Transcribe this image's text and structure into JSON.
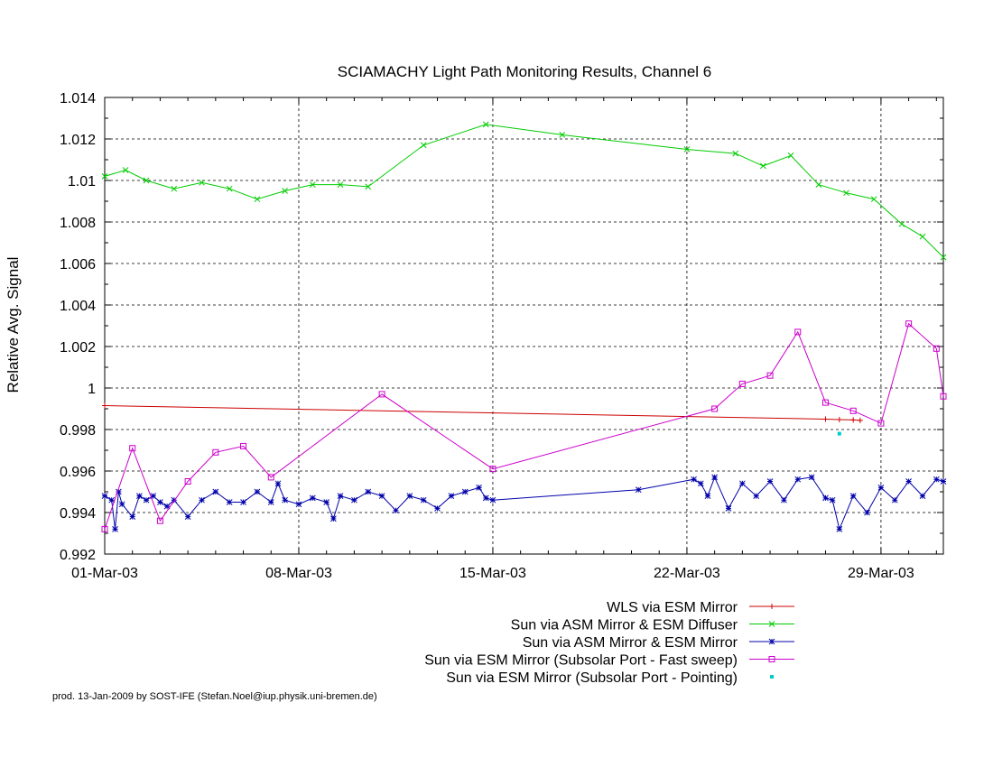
{
  "chart_data": {
    "type": "line",
    "title": "SCIAMACHY Light Path Monitoring Results, Channel 6",
    "xlabel": "",
    "ylabel": "Relative Avg. Signal",
    "x_unit": "date (March 2003)",
    "xlim": [
      "2003-03-01",
      "2003-03-31T06:00"
    ],
    "ylim": [
      0.992,
      1.014
    ],
    "x_ticks": [
      "01-Mar-03",
      "08-Mar-03",
      "15-Mar-03",
      "22-Mar-03",
      "29-Mar-03"
    ],
    "y_ticks": [
      "0.992",
      "0.994",
      "0.996",
      "0.998",
      "1",
      "1.002",
      "1.004",
      "1.006",
      "1.008",
      "1.01",
      "1.012",
      "1.014"
    ],
    "grid": true,
    "legend_position": "below-right",
    "footer": "prod. 13-Jan-2009 by SOST-IFE (Stefan.Noel@iup.physik.uni-bremen.de)",
    "series": [
      {
        "name": "WLS via ESM Mirror",
        "color": "#cc0000",
        "marker": "plus",
        "x": [
          "2003-03-01",
          "2003-03-27",
          "2003-03-27T12:00",
          "2003-03-28",
          "2003-03-28T06:00"
        ],
        "y": [
          0.99915,
          0.9985,
          0.99848,
          0.99846,
          0.99844
        ]
      },
      {
        "name": "Sun via ASM Mirror & ESM Diffuser",
        "color": "#00cc00",
        "marker": "x",
        "x": [
          "2003-03-01",
          "2003-03-01T18:00",
          "2003-03-02T12:00",
          "2003-03-03T12:00",
          "2003-03-04T12:00",
          "2003-03-05T12:00",
          "2003-03-06T12:00",
          "2003-03-07T12:00",
          "2003-03-08T12:00",
          "2003-03-09T12:00",
          "2003-03-10T12:00",
          "2003-03-12T12:00",
          "2003-03-14T18:00",
          "2003-03-17T12:00",
          "2003-03-22T00:00",
          "2003-03-23T18:00",
          "2003-03-24T18:00",
          "2003-03-25T18:00",
          "2003-03-26T18:00",
          "2003-03-27T18:00",
          "2003-03-28T18:00",
          "2003-03-29T18:00",
          "2003-03-30T12:00",
          "2003-03-31T06:00"
        ],
        "y": [
          1.0102,
          1.0105,
          1.01,
          1.0096,
          1.0099,
          1.0096,
          1.0091,
          1.0095,
          1.0098,
          1.0098,
          1.0097,
          1.0117,
          1.0127,
          1.0122,
          1.0115,
          1.0113,
          1.0107,
          1.0112,
          1.0098,
          1.0094,
          1.0091,
          1.0079,
          1.0073,
          1.0063
        ]
      },
      {
        "name": "Sun via ASM Mirror & ESM Mirror",
        "color": "#0000aa",
        "marker": "star",
        "x": [
          "2003-03-01",
          "2003-03-01T06:00",
          "2003-03-01T09:00",
          "2003-03-01T12:00",
          "2003-03-01T15:00",
          "2003-03-02",
          "2003-03-02T06:00",
          "2003-03-02T12:00",
          "2003-03-02T18:00",
          "2003-03-03",
          "2003-03-03T06:00",
          "2003-03-03T12:00",
          "2003-03-04",
          "2003-03-04T12:00",
          "2003-03-05",
          "2003-03-05T12:00",
          "2003-03-06",
          "2003-03-06T12:00",
          "2003-03-07",
          "2003-03-07T06:00",
          "2003-03-07T12:00",
          "2003-03-08",
          "2003-03-08T12:00",
          "2003-03-09",
          "2003-03-09T06:00",
          "2003-03-09T12:00",
          "2003-03-10",
          "2003-03-10T12:00",
          "2003-03-11",
          "2003-03-11T12:00",
          "2003-03-12",
          "2003-03-12T12:00",
          "2003-03-13",
          "2003-03-13T12:00",
          "2003-03-14",
          "2003-03-14T12:00",
          "2003-03-14T18:00",
          "2003-03-15",
          "2003-03-20T06:00",
          "2003-03-22T06:00",
          "2003-03-22T12:00",
          "2003-03-22T18:00",
          "2003-03-23",
          "2003-03-23T12:00",
          "2003-03-24",
          "2003-03-24T12:00",
          "2003-03-25",
          "2003-03-25T12:00",
          "2003-03-26",
          "2003-03-26T12:00",
          "2003-03-27",
          "2003-03-27T06:00",
          "2003-03-27T12:00",
          "2003-03-28",
          "2003-03-28T12:00",
          "2003-03-29",
          "2003-03-29T12:00",
          "2003-03-30",
          "2003-03-30T12:00",
          "2003-03-31",
          "2003-03-31T06:00"
        ],
        "y": [
          0.9948,
          0.9946,
          0.9932,
          0.995,
          0.9944,
          0.9938,
          0.9948,
          0.9946,
          0.9948,
          0.9945,
          0.9943,
          0.9946,
          0.9938,
          0.9946,
          0.995,
          0.9945,
          0.9945,
          0.995,
          0.9945,
          0.9954,
          0.9946,
          0.9944,
          0.9947,
          0.9945,
          0.9937,
          0.9948,
          0.9946,
          0.995,
          0.9948,
          0.9941,
          0.9948,
          0.9946,
          0.9942,
          0.9948,
          0.995,
          0.9952,
          0.9947,
          0.9946,
          0.9951,
          0.9956,
          0.9954,
          0.9948,
          0.9957,
          0.9942,
          0.9954,
          0.9948,
          0.9955,
          0.9946,
          0.9956,
          0.9957,
          0.9947,
          0.9946,
          0.9932,
          0.9948,
          0.994,
          0.9952,
          0.9946,
          0.9955,
          0.9948,
          0.9956,
          0.9955
        ]
      },
      {
        "name": "Sun via ESM Mirror (Subsolar Port - Fast sweep)",
        "color": "#cc00cc",
        "marker": "square",
        "x": [
          "2003-03-01",
          "2003-03-02",
          "2003-03-03",
          "2003-03-04",
          "2003-03-05",
          "2003-03-06",
          "2003-03-07",
          "2003-03-11",
          "2003-03-15",
          "2003-03-23",
          "2003-03-24",
          "2003-03-25",
          "2003-03-26",
          "2003-03-27",
          "2003-03-28",
          "2003-03-29",
          "2003-03-30",
          "2003-03-31",
          "2003-03-31T06:00"
        ],
        "y": [
          0.9932,
          0.9971,
          0.9936,
          0.9955,
          0.9969,
          0.9972,
          0.9957,
          0.9997,
          0.9961,
          0.999,
          1.0002,
          1.0006,
          1.0027,
          0.9993,
          0.9989,
          0.9983,
          1.0031,
          1.0019,
          0.9996
        ]
      },
      {
        "name": "Sun via ESM Mirror (Subsolar Port - Pointing)",
        "color": "#00cccc",
        "marker": "dot",
        "x": [
          "2003-03-27T12:00"
        ],
        "y": [
          0.9978
        ]
      }
    ]
  }
}
